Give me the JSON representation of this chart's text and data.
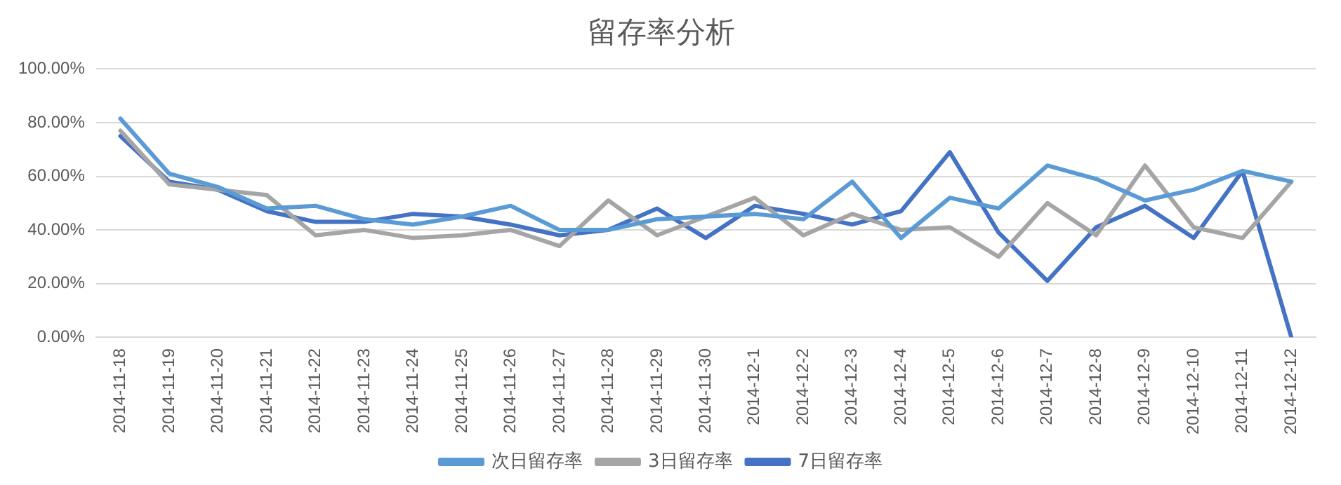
{
  "chart_data": {
    "type": "line",
    "title": "留存率分析",
    "categories": [
      "2014-11-18",
      "2014-11-19",
      "2014-11-20",
      "2014-11-21",
      "2014-11-22",
      "2014-11-23",
      "2014-11-24",
      "2014-11-25",
      "2014-11-26",
      "2014-11-27",
      "2014-11-28",
      "2014-11-29",
      "2014-11-30",
      "2014-12-1",
      "2014-12-2",
      "2014-12-3",
      "2014-12-4",
      "2014-12-5",
      "2014-12-6",
      "2014-12-7",
      "2014-12-8",
      "2014-12-9",
      "2014-12-10",
      "2014-12-11",
      "2014-12-12"
    ],
    "series": [
      {
        "name": "次日留存率",
        "color": "#5b9bd5",
        "values": [
          81.5,
          61,
          56,
          48,
          49,
          44,
          42,
          45,
          49,
          40,
          40,
          44,
          45,
          46,
          44,
          58,
          37,
          52,
          48,
          64,
          59,
          51,
          55,
          62,
          58
        ]
      },
      {
        "name": "3日留存率",
        "color": "#a5a5a5",
        "values": [
          77,
          57,
          55,
          53,
          38,
          40,
          37,
          38,
          40,
          34,
          51,
          38,
          45,
          52,
          38,
          46,
          40,
          41,
          30,
          50,
          38,
          64,
          41,
          37,
          58
        ]
      },
      {
        "name": "7日留存率",
        "color": "#4472c4",
        "values": [
          75,
          58,
          55,
          47,
          43,
          43,
          46,
          45,
          42,
          38,
          40,
          48,
          37,
          49,
          46,
          42,
          47,
          69,
          39,
          21,
          41,
          49,
          37,
          62,
          0
        ]
      }
    ],
    "ylim": [
      0,
      100
    ],
    "yticks": [
      {
        "value": 0,
        "label": "0.00%"
      },
      {
        "value": 20,
        "label": "20.00%"
      },
      {
        "value": 40,
        "label": "40.00%"
      },
      {
        "value": 60,
        "label": "60.00%"
      },
      {
        "value": 80,
        "label": "80.00%"
      },
      {
        "value": 100,
        "label": "100.00%"
      }
    ],
    "grid": "y",
    "legend": "bottom",
    "marker": "none",
    "line_style": "solid"
  }
}
